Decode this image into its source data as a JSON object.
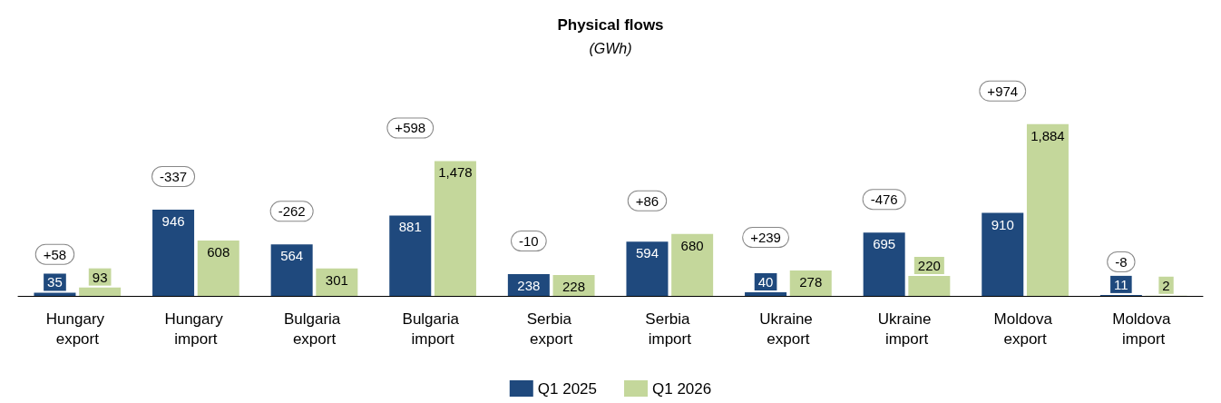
{
  "chart_data": {
    "type": "bar",
    "title": "Physical flows",
    "subtitle": "(GWh)",
    "categories": [
      "Hungary export",
      "Hungary import",
      "Bulgaria export",
      "Bulgaria import",
      "Serbia export",
      "Serbia import",
      "Ukraine export",
      "Ukraine import",
      "Moldova export",
      "Moldova import"
    ],
    "series": [
      {
        "name": "Q1 2025",
        "color": "#1f497d",
        "values": [
          35,
          946,
          564,
          881,
          238,
          594,
          40,
          695,
          910,
          11
        ],
        "value_labels": [
          "35",
          "946",
          "564",
          "881",
          "238",
          "594",
          "40",
          "695",
          "910",
          "11"
        ]
      },
      {
        "name": "Q1 2026",
        "color": "#c4d79b",
        "values": [
          93,
          608,
          301,
          1478,
          228,
          680,
          278,
          220,
          1884,
          2
        ],
        "value_labels": [
          "93",
          "608",
          "301",
          "1,478",
          "228",
          "680",
          "278",
          "220",
          "1,884",
          "2"
        ]
      }
    ],
    "legend": "bottom",
    "annotations": [
      {
        "text": "+58",
        "x": "Hungary export",
        "y": 93
      },
      {
        "text": "-337",
        "x": "Hungary import",
        "y": 946
      },
      {
        "text": "-262",
        "x": "Bulgaria export",
        "y": 564
      },
      {
        "text": "+598",
        "x": "Bulgaria import",
        "y": 1478
      },
      {
        "text": "-10",
        "x": "Serbia export",
        "y": 238
      },
      {
        "text": "+86",
        "x": "Serbia import",
        "y": 680
      },
      {
        "text": "+239",
        "x": "Ukraine export",
        "y": 278
      },
      {
        "text": "-476",
        "x": "Ukraine import",
        "y": 695
      },
      {
        "text": "+974",
        "x": "Moldova export",
        "y": 1884
      },
      {
        "text": "-8",
        "x": "Moldova import",
        "y": 11
      }
    ]
  }
}
